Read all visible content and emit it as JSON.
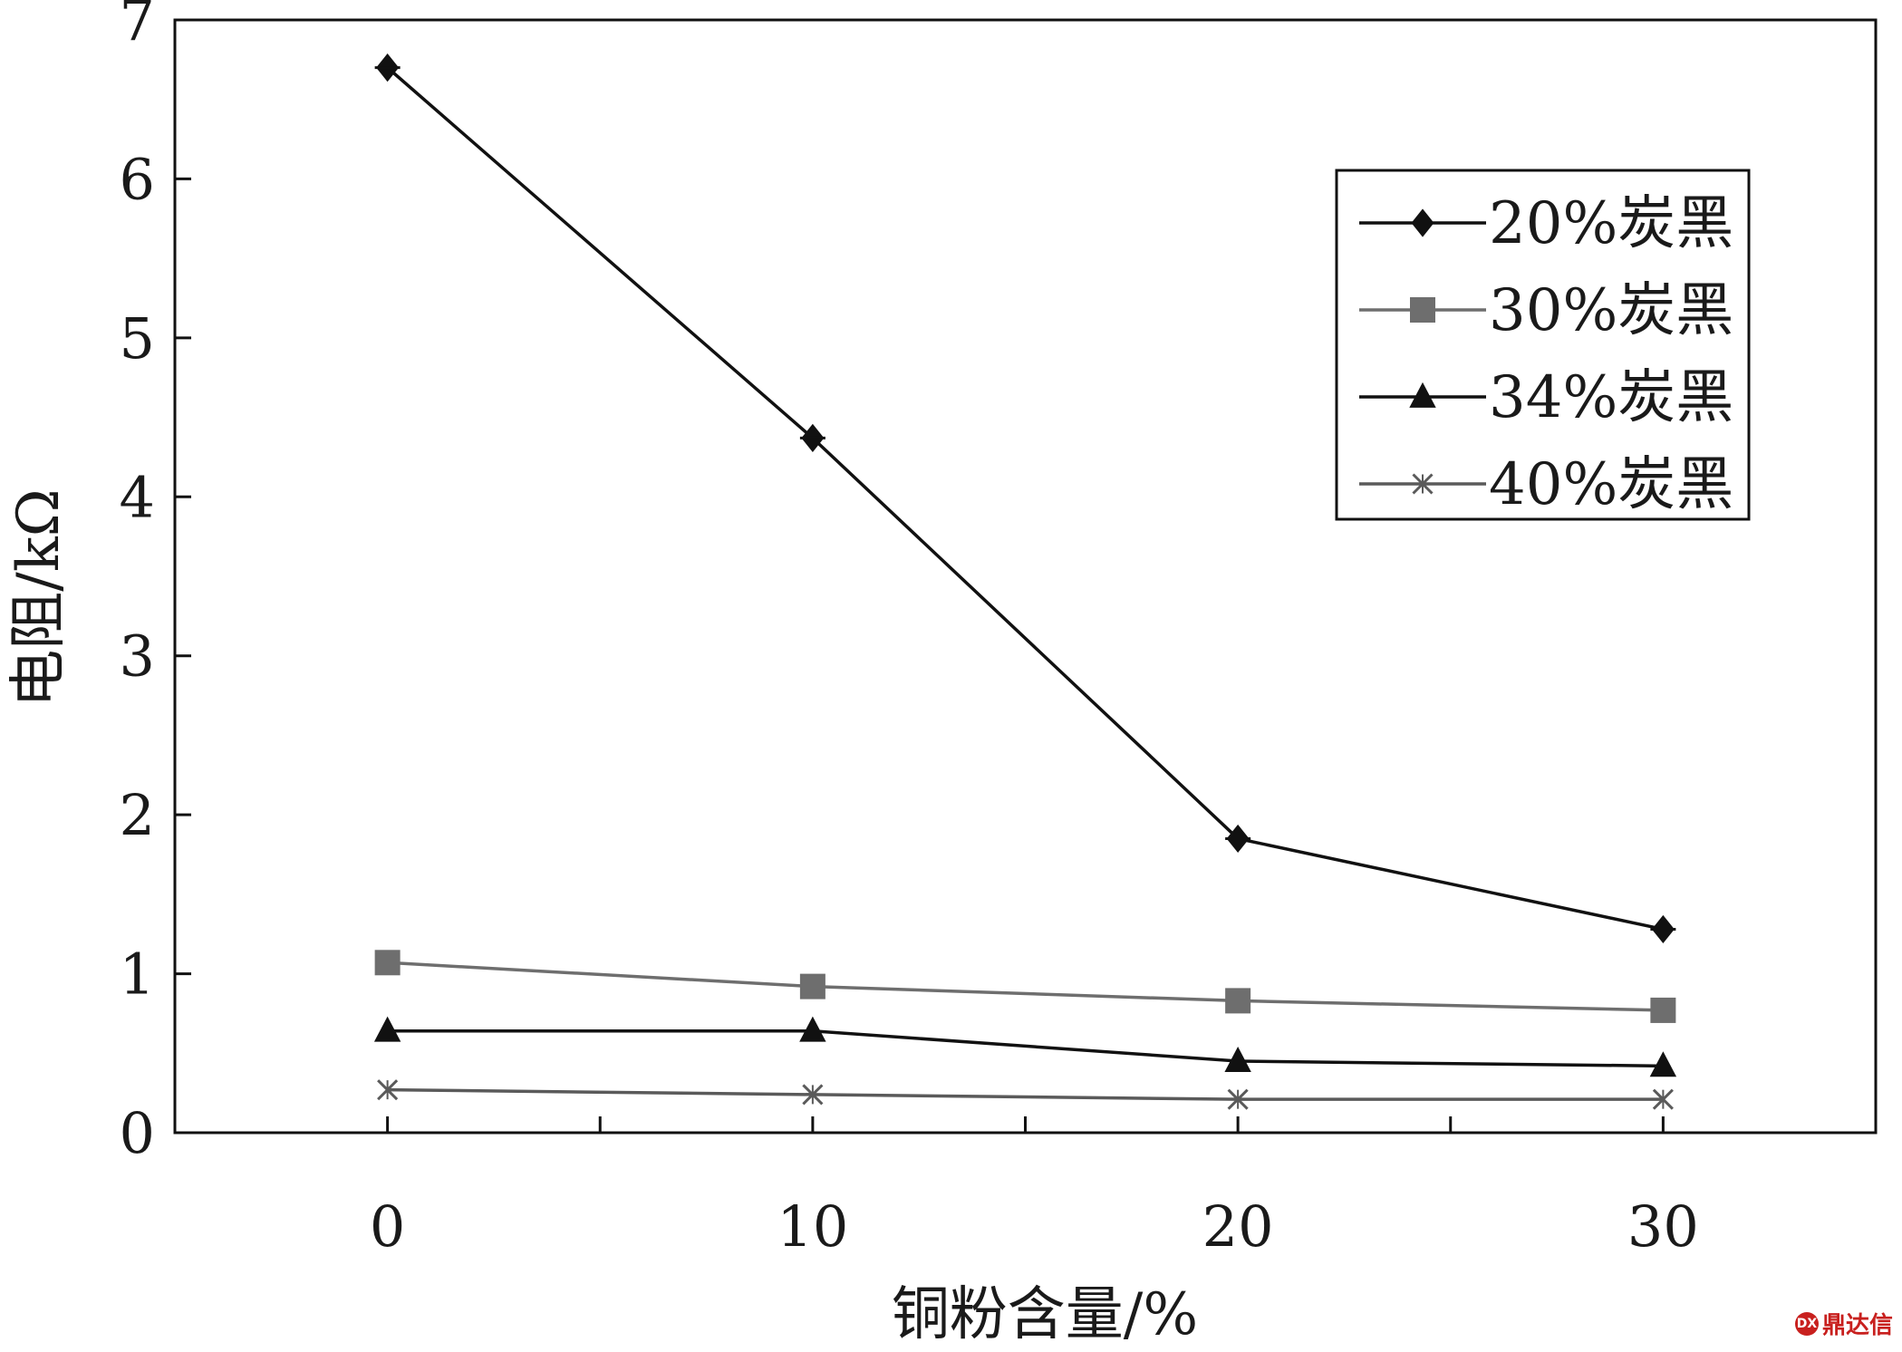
{
  "chart_data": {
    "type": "line",
    "xlabel": "铜粉含量/%",
    "ylabel": "电阻/kΩ",
    "categories": [
      "0",
      "10",
      "20",
      "30"
    ],
    "x": [
      0,
      10,
      20,
      30
    ],
    "xlim": [
      -5,
      35
    ],
    "ylim": [
      0,
      7
    ],
    "yticks": [
      "0",
      "1",
      "2",
      "3",
      "4",
      "5",
      "6",
      "7"
    ],
    "grid": false,
    "legend_position": "top-right",
    "series": [
      {
        "name": "20%炭黑",
        "values": [
          6.7,
          4.37,
          1.85,
          1.28
        ],
        "marker": "diamond",
        "color": "#111111"
      },
      {
        "name": "30%炭黑",
        "values": [
          1.07,
          0.92,
          0.83,
          0.77
        ],
        "marker": "square",
        "color": "#6e6e6e"
      },
      {
        "name": "34%炭黑",
        "values": [
          0.64,
          0.64,
          0.45,
          0.42
        ],
        "marker": "triangle",
        "color": "#111111"
      },
      {
        "name": "40%炭黑",
        "values": [
          0.27,
          0.24,
          0.21,
          0.21
        ],
        "marker": "x",
        "color": "#5a5a5a"
      }
    ]
  },
  "watermark": {
    "text": "鼎达信",
    "mark": "DX"
  }
}
